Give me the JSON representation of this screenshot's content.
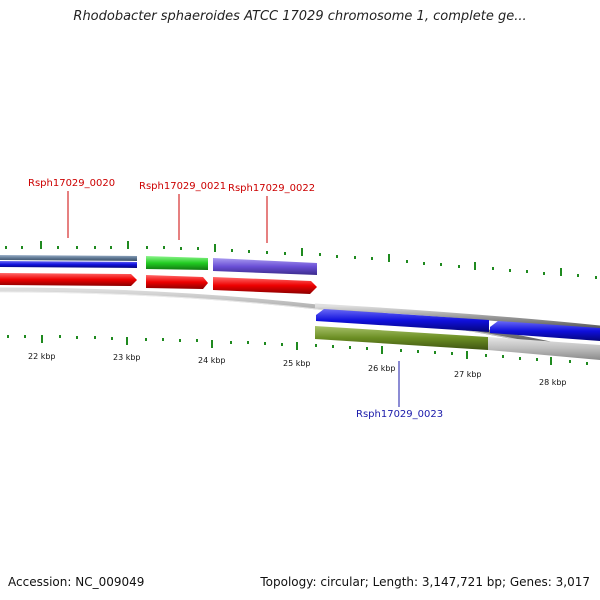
{
  "title": "Rhodobacter sphaeroides ATCC 17029 chromosome 1, complete ge...",
  "footer": {
    "accession": "Accession: NC_009049",
    "summary": "Topology: circular; Length: 3,147,721 bp; Genes: 3,017"
  },
  "gene_labels": [
    {
      "id": "g20",
      "text": "Rsph17029_0020",
      "color": "#cc0000"
    },
    {
      "id": "g21",
      "text": "Rsph17029_0021",
      "color": "#cc0000"
    },
    {
      "id": "g22",
      "text": "Rsph17029_0022",
      "color": "#cc0000"
    },
    {
      "id": "g23",
      "text": "Rsph17029_0023",
      "color": "#1a1aaa"
    }
  ],
  "kbp_labels": [
    "22 kbp",
    "23 kbp",
    "24 kbp",
    "25 kbp",
    "26 kbp",
    "27 kbp",
    "28 kbp"
  ],
  "colors": {
    "cds_red": "#ee0000",
    "blue": "#1010dd",
    "green": "#22cc22",
    "purple": "#6a4fd6",
    "olive": "#6b8e23",
    "backbone": "#777777",
    "tick": "#1f8a1f"
  }
}
